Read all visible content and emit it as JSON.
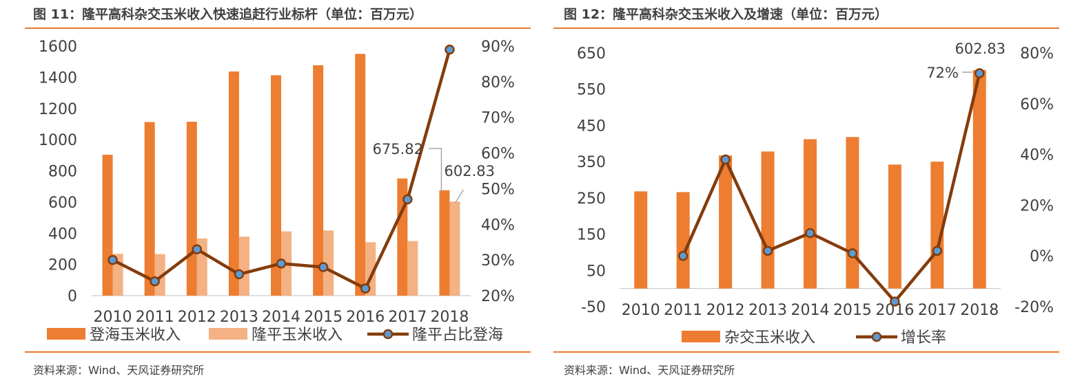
{
  "charts": [
    {
      "title": "图 11：隆平高科杂交玉米收入快速追赶行业标杆（单位：百万元）",
      "source": "资料来源：Wind、天风证券研究所"
    },
    {
      "title": "图 12：隆平高科杂交玉米收入及增速（单位：百万元）",
      "source": "资料来源：Wind、天风证券研究所"
    }
  ],
  "colors": {
    "bar_primary": "#ED7D31",
    "bar_secondary": "#F4B183",
    "line": "#843C0C",
    "marker_fill": "#5B9BD5",
    "accent_rule": "#E8792E",
    "axis_text": "#404040"
  },
  "chart_data": [
    {
      "type": "bar",
      "categories": [
        "2010",
        "2011",
        "2012",
        "2013",
        "2014",
        "2015",
        "2016",
        "2017",
        "2018"
      ],
      "series": [
        {
          "name": "登海玉米收入",
          "type": "bar",
          "axis": "left",
          "values": [
            903,
            1113,
            1115,
            1437,
            1413,
            1477,
            1550,
            751,
            675.82
          ]
        },
        {
          "name": "隆平玉米收入",
          "type": "bar",
          "axis": "left",
          "values": [
            268,
            266,
            367,
            378,
            412,
            418,
            342,
            350,
            602.83
          ]
        },
        {
          "name": "隆平占比登海",
          "type": "line",
          "axis": "right",
          "values": [
            30,
            24,
            33,
            26,
            29,
            28,
            22,
            47,
            89
          ]
        }
      ],
      "y_left": {
        "min": 0,
        "max": 1600,
        "ticks": [
          "0",
          "200",
          "400",
          "600",
          "800",
          "1000",
          "1200",
          "1400",
          "1600"
        ]
      },
      "y_right": {
        "min": 20,
        "max": 90,
        "ticks": [
          "20%",
          "30%",
          "40%",
          "50%",
          "60%",
          "70%",
          "80%",
          "90%"
        ]
      },
      "annotations": [
        "675.82",
        "602.83"
      ],
      "legend_position": "bottom",
      "grid": false
    },
    {
      "type": "bar",
      "categories": [
        "2010",
        "2011",
        "2012",
        "2013",
        "2014",
        "2015",
        "2016",
        "2017",
        "2018"
      ],
      "series": [
        {
          "name": "杂交玉米收入",
          "type": "bar",
          "axis": "left",
          "values": [
            268,
            266,
            367,
            378,
            412,
            418,
            342,
            350,
            602.83
          ]
        },
        {
          "name": "增长率",
          "type": "line",
          "axis": "right",
          "values": [
            null,
            0,
            38,
            2,
            9,
            1,
            -18,
            2,
            72
          ]
        }
      ],
      "y_left": {
        "min": -50,
        "max": 650,
        "ticks": [
          "-50",
          "50",
          "150",
          "250",
          "350",
          "450",
          "550",
          "650"
        ]
      },
      "y_right": {
        "min": -20,
        "max": 80,
        "ticks": [
          "-20%",
          "0%",
          "20%",
          "40%",
          "60%",
          "80%"
        ]
      },
      "annotations": [
        "602.83",
        "72%"
      ],
      "legend_position": "bottom",
      "grid": false
    }
  ]
}
